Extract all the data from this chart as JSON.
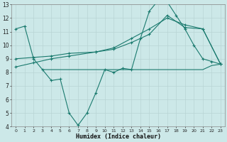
{
  "xlabel": "Humidex (Indice chaleur)",
  "bg_color": "#cce8e8",
  "line_color": "#1a7a6e",
  "grid_color": "#b8d4d4",
  "xlim": [
    -0.5,
    23.5
  ],
  "ylim": [
    4,
    13
  ],
  "xticks": [
    0,
    1,
    2,
    3,
    4,
    5,
    6,
    7,
    8,
    9,
    10,
    11,
    12,
    13,
    14,
    15,
    16,
    17,
    18,
    19,
    20,
    21,
    22,
    23
  ],
  "yticks": [
    4,
    5,
    6,
    7,
    8,
    9,
    10,
    11,
    12,
    13
  ],
  "line1_x": [
    0,
    1,
    2,
    3,
    4,
    5,
    6,
    7,
    8,
    9,
    10,
    11,
    12,
    13,
    14,
    15,
    16,
    17,
    18,
    19,
    20,
    21,
    22,
    23
  ],
  "line1_y": [
    11.2,
    11.4,
    9.0,
    8.2,
    7.4,
    7.5,
    5.0,
    4.1,
    5.0,
    6.5,
    8.2,
    8.0,
    8.3,
    8.2,
    10.5,
    12.5,
    13.3,
    13.2,
    12.2,
    11.2,
    10.0,
    9.0,
    8.8,
    8.6
  ],
  "line2_x": [
    3,
    4,
    5,
    6,
    7,
    8,
    9,
    10,
    11,
    12,
    13,
    14,
    15,
    16,
    17,
    18,
    19,
    20,
    21,
    22,
    23
  ],
  "line2_y": [
    8.2,
    8.2,
    8.2,
    8.2,
    8.2,
    8.2,
    8.2,
    8.2,
    8.2,
    8.2,
    8.2,
    8.2,
    8.2,
    8.2,
    8.2,
    8.2,
    8.2,
    8.2,
    8.2,
    8.5,
    8.6
  ],
  "line3_x": [
    0,
    2,
    4,
    6,
    9,
    11,
    13,
    15,
    17,
    19,
    21,
    23
  ],
  "line3_y": [
    9.0,
    9.1,
    9.2,
    9.4,
    9.5,
    9.7,
    10.2,
    10.8,
    12.2,
    11.3,
    11.2,
    8.6
  ],
  "line4_x": [
    0,
    2,
    4,
    6,
    9,
    11,
    13,
    15,
    17,
    19,
    21,
    23
  ],
  "line4_y": [
    8.4,
    8.7,
    9.0,
    9.2,
    9.5,
    9.8,
    10.5,
    11.2,
    12.0,
    11.5,
    11.2,
    8.6
  ]
}
